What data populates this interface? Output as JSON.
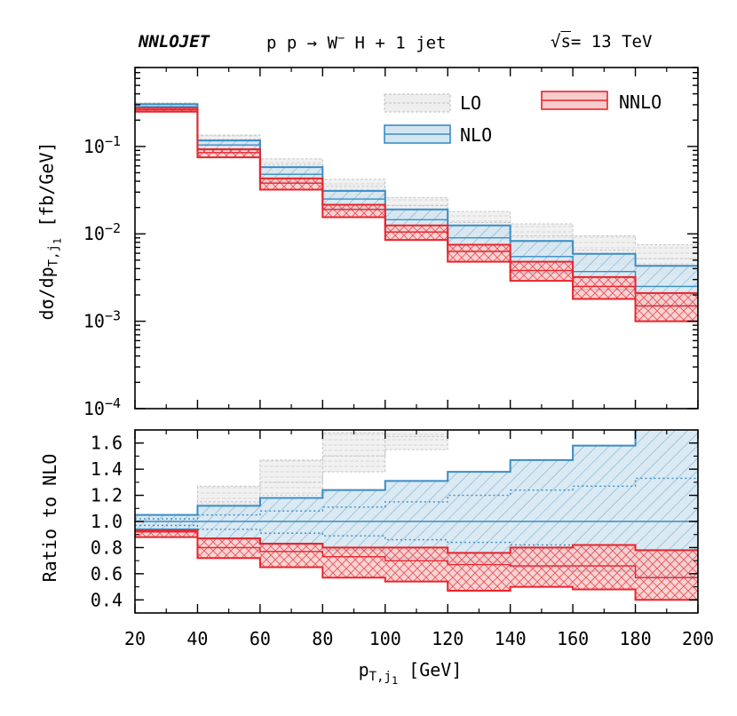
{
  "header": {
    "brand": "NNLOJET",
    "process_left": "p p → W",
    "process_sup": "−",
    "process_right": " H + 1 jet",
    "energy_sqrt": "√",
    "energy_s": "s",
    "energy_value": "= 13 TeV"
  },
  "axes": {
    "top_ylabel_main": "dσ/dp",
    "top_ylabel_sub": "T,j",
    "top_ylabel_subsub": "1",
    "top_ylabel_unit": " [fb/GeV]",
    "bottom_ylabel": "Ratio to NLO",
    "xlabel_main": "p",
    "xlabel_sub": "T,j",
    "xlabel_subsub": "1",
    "xlabel_unit": " [GeV]"
  },
  "colors": {
    "LO": "#9e9e9e",
    "LO_fill": "#eeeeee",
    "NLO": "#3a8cc4",
    "NLO_fill": "#d4e5f0",
    "NNLO": "#e8242c",
    "NNLO_fill": "#f7cccc"
  },
  "chart_data": [
    {
      "type": "histogram",
      "panel": "main",
      "x_bins": [
        20,
        40,
        60,
        80,
        100,
        120,
        140,
        160,
        180,
        200
      ],
      "xlim": [
        20,
        200
      ],
      "ylim": [
        0.0001,
        0.8
      ],
      "yscale": "log",
      "y_ticks": [
        {
          "value": 0.1,
          "base": "10",
          "exp": "−1"
        },
        {
          "value": 0.01,
          "base": "10",
          "exp": "−2"
        },
        {
          "value": 0.001,
          "base": "10",
          "exp": "−3"
        },
        {
          "value": 0.0001,
          "base": "10",
          "exp": "−4"
        }
      ],
      "legend_position": "top-right",
      "series": [
        {
          "name": "LO",
          "central": [
            0.285,
            0.12,
            0.062,
            0.035,
            0.021,
            0.0135,
            0.0095,
            0.0065,
            0.0052
          ],
          "lower": [
            0.255,
            0.098,
            0.048,
            0.026,
            0.0155,
            0.0095,
            0.0065,
            0.0045,
            0.0035
          ],
          "upper": [
            0.315,
            0.135,
            0.072,
            0.042,
            0.026,
            0.018,
            0.013,
            0.0095,
            0.0075
          ]
        },
        {
          "name": "NLO",
          "central": [
            0.285,
            0.104,
            0.048,
            0.025,
            0.0145,
            0.009,
            0.0055,
            0.0037,
            0.0025
          ],
          "lower": [
            0.268,
            0.09,
            0.039,
            0.0195,
            0.0105,
            0.0062,
            0.0036,
            0.0023,
            0.00145
          ],
          "upper": [
            0.305,
            0.117,
            0.058,
            0.031,
            0.019,
            0.0125,
            0.0083,
            0.0059,
            0.0043
          ]
        },
        {
          "name": "NNLO",
          "central": [
            0.262,
            0.085,
            0.038,
            0.019,
            0.0105,
            0.0063,
            0.0038,
            0.0025,
            0.0015
          ],
          "lower": [
            0.25,
            0.075,
            0.032,
            0.0155,
            0.0085,
            0.0048,
            0.0029,
            0.0018,
            0.001
          ],
          "upper": [
            0.275,
            0.093,
            0.043,
            0.0215,
            0.0125,
            0.0075,
            0.0048,
            0.0032,
            0.0021
          ]
        }
      ]
    },
    {
      "type": "histogram",
      "panel": "ratio",
      "x_bins": [
        20,
        40,
        60,
        80,
        100,
        120,
        140,
        160,
        180,
        200
      ],
      "xlim": [
        20,
        200
      ],
      "ylim": [
        0.3,
        1.7
      ],
      "x_tick_labels": [
        "20",
        "40",
        "60",
        "80",
        "100",
        "120",
        "140",
        "160",
        "180",
        "200"
      ],
      "y_tick_labels": [
        "0.4",
        "0.6",
        "0.8",
        "1.0",
        "1.2",
        "1.4",
        "1.6"
      ],
      "series": [
        {
          "name": "LO",
          "lower": [
            0.95,
            1.05,
            1.2,
            1.38,
            1.55,
            1.7,
            1.7,
            1.7,
            1.7
          ],
          "upper": [
            1.05,
            1.27,
            1.47,
            1.68,
            1.7,
            1.7,
            1.7,
            1.7,
            1.7
          ],
          "central": [
            1.0,
            1.15,
            1.3,
            1.5,
            1.65,
            1.7,
            1.7,
            1.7,
            1.7
          ]
        },
        {
          "name": "NLO",
          "central": [
            1.0,
            1.0,
            1.0,
            1.0,
            1.0,
            1.0,
            1.0,
            1.0,
            1.0
          ],
          "lower": [
            0.94,
            0.87,
            0.82,
            0.78,
            0.72,
            0.69,
            0.65,
            0.62,
            0.58
          ],
          "upper": [
            1.05,
            1.12,
            1.18,
            1.24,
            1.31,
            1.38,
            1.47,
            1.58,
            1.72
          ],
          "inner_lower": [
            0.97,
            0.94,
            0.91,
            0.89,
            0.86,
            0.84,
            0.82,
            0.8,
            0.78
          ],
          "inner_upper": [
            1.02,
            1.05,
            1.08,
            1.11,
            1.15,
            1.2,
            1.24,
            1.27,
            1.33
          ]
        },
        {
          "name": "NNLO",
          "central": [
            0.92,
            0.8,
            0.77,
            0.73,
            0.7,
            0.67,
            0.66,
            0.66,
            0.57
          ],
          "lower": [
            0.88,
            0.72,
            0.65,
            0.57,
            0.54,
            0.47,
            0.5,
            0.48,
            0.4
          ],
          "upper": [
            0.93,
            0.87,
            0.83,
            0.8,
            0.8,
            0.76,
            0.8,
            0.82,
            0.78
          ]
        }
      ]
    }
  ]
}
